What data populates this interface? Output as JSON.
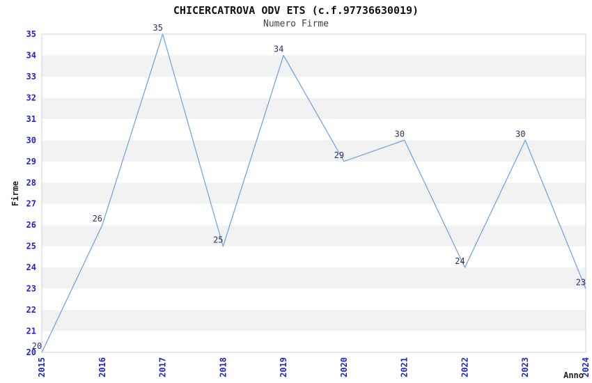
{
  "chart_data": {
    "type": "line",
    "title": "CHICERCATROVA ODV ETS (c.f.97736630019)",
    "subtitle": "Numero Firme",
    "xlabel": "Anno",
    "ylabel": "Firme",
    "x": [
      2015,
      2016,
      2017,
      2018,
      2019,
      2020,
      2021,
      2022,
      2023,
      2024
    ],
    "values": [
      20,
      26,
      35,
      25,
      34,
      29,
      30,
      24,
      30,
      23
    ],
    "ylim": [
      20,
      35
    ],
    "ytick_step": 1,
    "xtick_rotation": 90,
    "grid": "alternating horizontal stripes",
    "legend": "none",
    "data_labels_shown": true,
    "colors": {
      "line": "#73a5e6",
      "tick_label": "#2323cc",
      "data_label": "#2e2e66",
      "stripe_gray": "#f2f2f2",
      "stripe_white": "#ffffff",
      "plot_border": "#d2d2d2",
      "title_text": "#111111",
      "subtitle_text": "#404040",
      "axis_label_text": "#222222"
    }
  }
}
